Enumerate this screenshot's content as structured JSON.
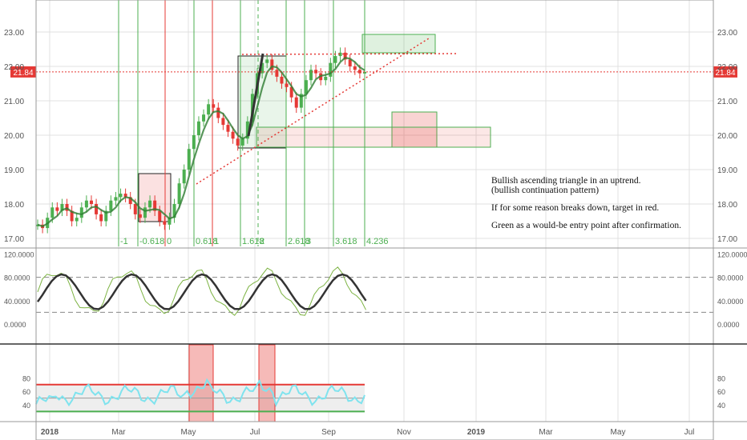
{
  "colors": {
    "up": "#4caf50",
    "down": "#e53935",
    "red_line": "#e53935",
    "green_line": "#4caf50",
    "grid": "#e0e0e0",
    "axis": "#555555",
    "price_badge": "#e53935",
    "rsi_line": "#7fe3ee",
    "dark_line": "#333333"
  },
  "chart_data": [
    {
      "type": "candlestick",
      "x_ticks": [
        "2018",
        "Mar",
        "May",
        "Jul",
        "Sep",
        "Nov",
        "2019",
        "Mar",
        "May",
        "Jul"
      ],
      "y_ticks": [
        "17.00",
        "18.00",
        "19.00",
        "20.00",
        "21.00",
        "22.00",
        "23.00"
      ],
      "ylim": [
        16.8,
        24.0
      ],
      "last_price": "21.84",
      "last_price_value": 21.84,
      "fib_labels": [
        "-1",
        "-0.618",
        "0",
        "0.618",
        "1",
        "1.618",
        "2",
        "2.618",
        "3",
        "3.618",
        "4.236"
      ],
      "annotation": {
        "line1": "Bullish ascending triangle in an uptrend.",
        "line2": "(bullish continuation pattern)",
        "line3": "If for some reason breaks down, target in red.",
        "line4": "Green as a would-be entry point after confirmation."
      },
      "candles_close": [
        17.4,
        17.3,
        17.6,
        17.9,
        17.8,
        18.0,
        17.8,
        17.5,
        17.6,
        17.9,
        18.1,
        18.0,
        17.7,
        17.5,
        17.8,
        18.1,
        18.2,
        18.3,
        18.2,
        18.0,
        17.7,
        17.6,
        17.9,
        18.1,
        17.8,
        17.5,
        17.4,
        17.6,
        18.0,
        18.6,
        19.0,
        19.6,
        20.0,
        20.4,
        20.6,
        20.9,
        20.8,
        20.5,
        20.3,
        20.1,
        19.9,
        19.7,
        19.9,
        20.4,
        21.2,
        21.8,
        22.1,
        22.2,
        21.9,
        21.7,
        21.5,
        21.4,
        21.1,
        20.8,
        21.2,
        21.6,
        21.9,
        21.8,
        21.6,
        21.7,
        22.1,
        22.3,
        22.4,
        22.2,
        22.0,
        21.9,
        21.8,
        21.84
      ],
      "stoch_y_ticks": [
        "120.0000",
        "80.0000",
        "40.0000",
        "0.0000"
      ],
      "rsi_y_ticks": [
        "80",
        "60",
        "40"
      ]
    }
  ]
}
